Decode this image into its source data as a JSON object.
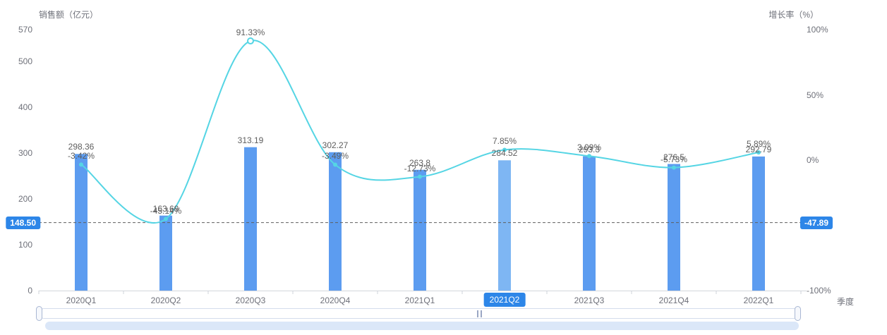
{
  "chart_data": {
    "type": "combo",
    "title": "",
    "categories": [
      "2020Q1",
      "2020Q2",
      "2020Q3",
      "2020Q4",
      "2021Q1",
      "2021Q2",
      "2021Q3",
      "2021Q4",
      "2022Q1"
    ],
    "series": [
      {
        "name": "销售额",
        "type": "bar",
        "y_axis": "left",
        "color": "#5c9cf0",
        "highlight_color": "#7eb6f3",
        "values": [
          298.36,
          163.69,
          313.19,
          302.27,
          263.8,
          284.52,
          293.3,
          276.5,
          292.79
        ],
        "labels": [
          "298.36",
          "163.69",
          "313.19",
          "302.27",
          "263.8",
          "284.52",
          "293.3",
          "276.5",
          "292.79"
        ]
      },
      {
        "name": "增长率",
        "type": "line",
        "y_axis": "right",
        "color": "#55d5e4",
        "values": [
          -3.42,
          -45.14,
          91.33,
          -3.49,
          -12.73,
          7.85,
          3.09,
          -5.73,
          5.89
        ],
        "labels": [
          "-3.42%",
          "-45.14%",
          "91.33%",
          "-3.49%",
          "-12.73%",
          "7.85%",
          "3.09%",
          "-5.73%",
          "5.89%"
        ],
        "emphasized_point": "2020Q3"
      }
    ],
    "left_axis": {
      "title": "销售额（亿元）",
      "min": 0,
      "max": 570,
      "ticks": [
        570,
        500,
        400,
        300,
        200,
        100,
        0
      ]
    },
    "right_axis": {
      "title": "增长率（%）",
      "min": -100,
      "max": 100,
      "ticks": [
        {
          "v": 100,
          "label": "100%"
        },
        {
          "v": 50,
          "label": "50%"
        },
        {
          "v": 0,
          "label": "0%"
        },
        {
          "v": -100,
          "label": "-100%"
        }
      ]
    },
    "x_axis": {
      "name": "季度",
      "selected": "2021Q2"
    },
    "pointer": {
      "left_label": "148.50",
      "right_label": "-47.89",
      "left_value": 148.5,
      "right_value": -47.89,
      "color": "#2d86e8"
    },
    "grid": false,
    "legend": "none"
  }
}
